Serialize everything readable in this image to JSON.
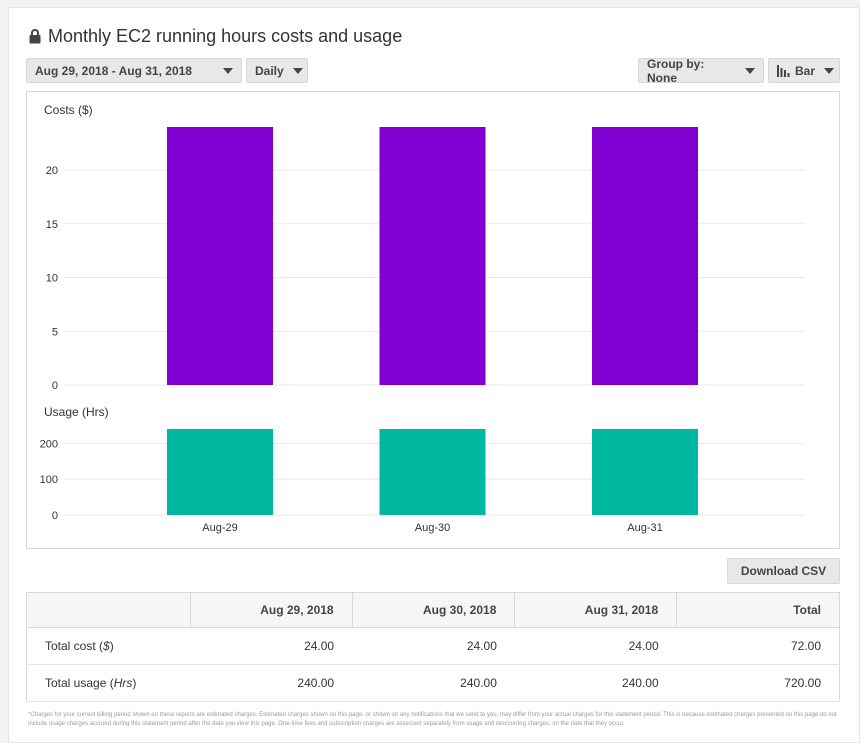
{
  "header": {
    "title": "Monthly EC2 running hours costs and usage"
  },
  "toolbar": {
    "date_range": "Aug 29, 2018 - Aug 31, 2018",
    "granularity": "Daily",
    "group_by": "Group by: None",
    "chart_type": "Bar"
  },
  "chart_data": [
    {
      "type": "bar",
      "title": "Costs ($)",
      "categories": [
        "Aug-29",
        "Aug-30",
        "Aug-31"
      ],
      "values": [
        24,
        24,
        24
      ],
      "ylim": [
        0,
        24
      ],
      "yticks": [
        0,
        5,
        10,
        15,
        20
      ],
      "ytick_labels": [
        "0",
        "5",
        "10",
        "15",
        "20"
      ],
      "color": "#8000d2",
      "grid": true
    },
    {
      "type": "bar",
      "title": "Usage (Hrs)",
      "categories": [
        "Aug-29",
        "Aug-30",
        "Aug-31"
      ],
      "values": [
        240,
        240,
        240
      ],
      "ylim": [
        0,
        240
      ],
      "yticks": [
        0,
        100,
        200
      ],
      "ytick_labels": [
        "0",
        "100",
        "200"
      ],
      "color": "#00b8a0",
      "grid": true
    }
  ],
  "actions": {
    "download_csv": "Download CSV"
  },
  "table": {
    "headers": [
      "",
      "Aug 29, 2018",
      "Aug 30, 2018",
      "Aug 31, 2018",
      "Total"
    ],
    "rows": [
      {
        "label": "Total cost ",
        "unit": "$",
        "values": [
          "24.00",
          "24.00",
          "24.00",
          "72.00"
        ]
      },
      {
        "label": "Total usage ",
        "unit": "Hrs",
        "values": [
          "240.00",
          "240.00",
          "240.00",
          "720.00"
        ]
      }
    ]
  },
  "footnote": "*Charges for your current billing period shown on these reports are estimated charges. Estimated charges shown on this page, or shown on any notifications that we send to you, may differ from your actual charges for this statement period. This is because estimated charges presented on this page do not include usage charges accrued during this statement period after the date you view this page. One-time fees and subscription charges are assessed separately from usage and reoccurring charges, on the date that they occur."
}
